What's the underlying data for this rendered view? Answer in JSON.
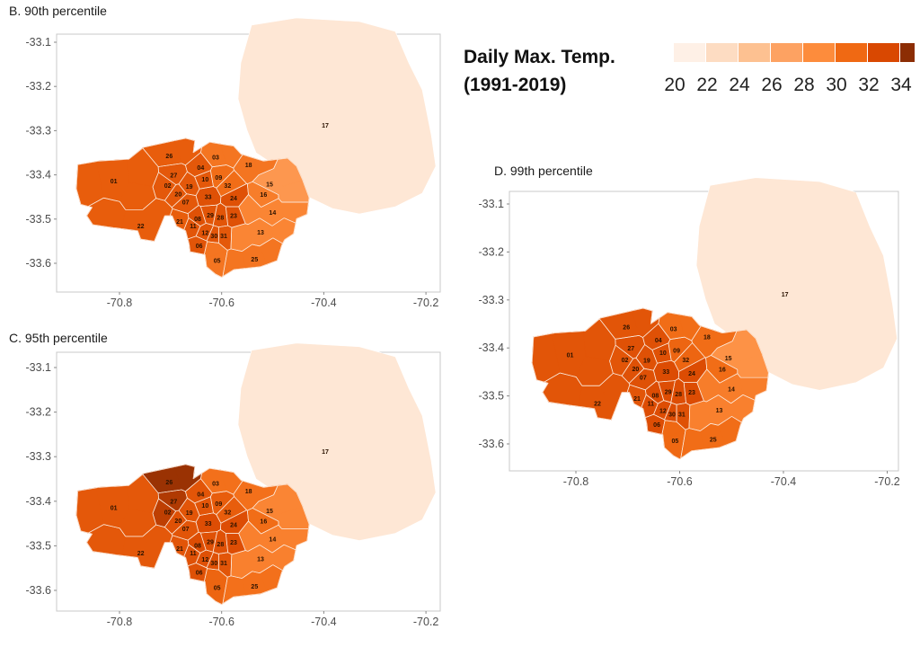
{
  "chart_data": {
    "type": "choropleth",
    "legend": {
      "title_line1": "Daily Max. Temp.",
      "title_line2": "(1991-2019)",
      "ticks": [
        "20",
        "22",
        "24",
        "26",
        "28",
        "30",
        "32",
        "34"
      ],
      "colors": [
        "#fef0e6",
        "#fddcc2",
        "#fdc191",
        "#fda262",
        "#fd8c3c",
        "#f06913",
        "#d94801",
        "#8c2d04"
      ],
      "range": [
        20,
        35
      ]
    },
    "x_ticks": [
      "-70.8",
      "-70.6",
      "-70.4",
      "-70.2"
    ],
    "y_ticks": [
      "-33.1",
      "-33.2",
      "-33.3",
      "-33.4",
      "-33.5",
      "-33.6"
    ],
    "panels": [
      {
        "key": "B",
        "title": "B. 90th percentile",
        "values": {
          "01": 31.5,
          "02": 31.8,
          "03": 30,
          "04": 31.8,
          "05": 30,
          "06": 32,
          "07": 31.8,
          "08": 32.3,
          "09": 30.5,
          "10": 31.8,
          "11": 32,
          "12": 32,
          "13": 29,
          "14": 29,
          "15": 27.5,
          "16": 29.5,
          "17": 21,
          "18": 30,
          "19": 31.8,
          "20": 31.8,
          "21": 31.5,
          "22": 31.5,
          "23": 32.3,
          "24": 32.3,
          "25": 30,
          "26": 31.5,
          "27": 31.8,
          "28": 32,
          "29": 32,
          "30": 32,
          "31": 31.8,
          "32": 30.5,
          "33": 32.3
        }
      },
      {
        "key": "C",
        "title": "C. 95th percentile",
        "values": {
          "01": 31.8,
          "02": 33.6,
          "03": 30.3,
          "04": 32,
          "05": 31,
          "06": 32.3,
          "07": 32,
          "08": 32.5,
          "09": 31.5,
          "10": 32,
          "11": 32.3,
          "12": 32.3,
          "13": 29.3,
          "14": 29.3,
          "15": 29,
          "16": 30.5,
          "17": 21,
          "18": 30.3,
          "19": 32,
          "20": 32.3,
          "21": 32,
          "22": 31.8,
          "23": 32.5,
          "24": 32.5,
          "25": 30.3,
          "26": 34.6,
          "27": 34,
          "28": 32.3,
          "29": 32.3,
          "30": 32.3,
          "31": 32,
          "32": 31.5,
          "33": 32.5
        }
      },
      {
        "key": "D",
        "title": "D. 99th percentile",
        "values": {
          "01": 32,
          "02": 32,
          "03": 30.5,
          "04": 32.3,
          "05": 30.8,
          "06": 32.5,
          "07": 32.3,
          "08": 32.6,
          "09": 31,
          "10": 32.3,
          "11": 32.5,
          "12": 32.5,
          "13": 29.3,
          "14": 29.5,
          "15": 28,
          "16": 30.5,
          "17": 21,
          "18": 30.5,
          "19": 32.3,
          "20": 32.3,
          "21": 32,
          "22": 32,
          "23": 32.6,
          "24": 32.6,
          "25": 30.5,
          "26": 32,
          "27": 32.3,
          "28": 32.5,
          "29": 32.5,
          "30": 32.5,
          "31": 32.3,
          "32": 31,
          "33": 32.6
        }
      }
    ]
  }
}
